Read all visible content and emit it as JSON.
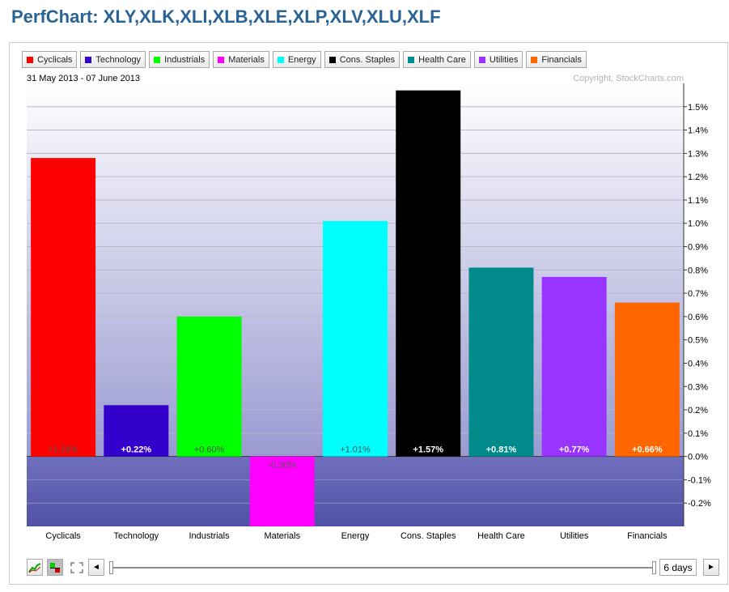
{
  "page_title": "PerfChart: XLY,XLK,XLI,XLB,XLE,XLP,XLV,XLU,XLF",
  "date_range": "31 May 2013 - 07 June 2013",
  "copyright": "Copyright, StockCharts.com",
  "colors": {
    "Cyclicals": "#ff0000",
    "Technology": "#3300cc",
    "Industrials": "#00ff00",
    "Materials": "#ff00ff",
    "Energy": "#00ffff",
    "Cons. Staples": "#000000",
    "Health Care": "#008b8b",
    "Utilities": "#9933ff",
    "Financials": "#ff6600"
  },
  "legend": [
    "Cyclicals",
    "Technology",
    "Industrials",
    "Materials",
    "Energy",
    "Cons. Staples",
    "Health Care",
    "Utilities",
    "Financials"
  ],
  "chart_data": {
    "type": "bar",
    "categories": [
      "Cyclicals",
      "Technology",
      "Industrials",
      "Materials",
      "Energy",
      "Cons. Staples",
      "Health Care",
      "Utilities",
      "Financials"
    ],
    "values": [
      1.28,
      0.22,
      0.6,
      -0.3,
      1.01,
      1.57,
      0.81,
      0.77,
      0.66
    ],
    "value_labels": [
      "+1.28%",
      "+0.22%",
      "+0.60%",
      "-0.30%",
      "+1.01%",
      "+1.57%",
      "+0.81%",
      "+0.77%",
      "+0.66%"
    ],
    "y_ticks": [
      1.5,
      1.4,
      1.3,
      1.2,
      1.1,
      1.0,
      0.9,
      0.8,
      0.7,
      0.6,
      0.5,
      0.4,
      0.3,
      0.2,
      0.1,
      0.0,
      -0.1,
      -0.2
    ],
    "y_tick_labels": [
      "1.5%",
      "1.4%",
      "1.3%",
      "1.2%",
      "1.1%",
      "1.0%",
      "0.9%",
      "0.8%",
      "0.7%",
      "0.6%",
      "0.5%",
      "0.4%",
      "0.3%",
      "0.2%",
      "0.1%",
      "0.0%",
      "-0.1%",
      "-0.2%"
    ],
    "ylim": [
      -0.3,
      1.6
    ],
    "y_axis_position": "right",
    "grid": true,
    "legend_position": "top-left"
  },
  "controls": {
    "days_label": "6 days",
    "prev_label": "◄",
    "next_label": "►"
  }
}
